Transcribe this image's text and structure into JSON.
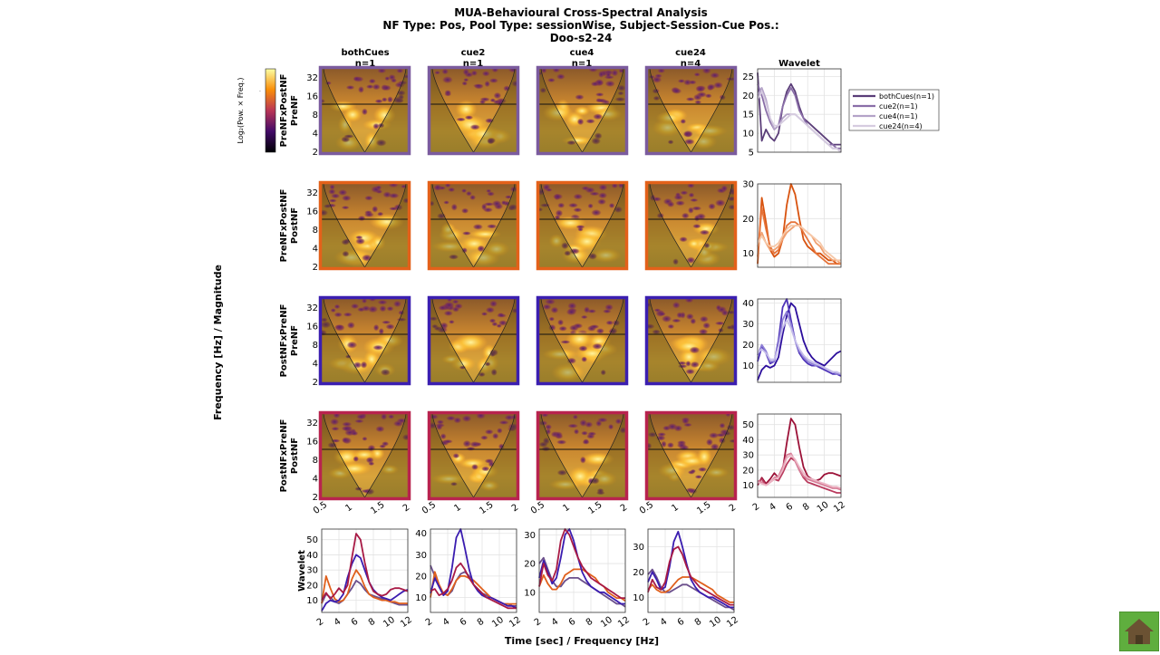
{
  "title": {
    "line1": "MUA-Behavioural Cross-Spectral Analysis",
    "line2": "NF Type: Pos, Pool Type: sessionWise, Subject-Session-Cue Pos.:",
    "line3": "Doo-s2-24"
  },
  "column_headers": [
    {
      "name": "bothCues",
      "n": "n=1"
    },
    {
      "name": "cue2",
      "n": "n=1"
    },
    {
      "name": "cue4",
      "n": "n=1"
    },
    {
      "name": "cue24",
      "n": "n=4"
    }
  ],
  "wavelet_column_title": "Wavelet",
  "row_labels": [
    {
      "line1": "PreNFxPostNF",
      "line2": "PreNF"
    },
    {
      "line1": "PreNFxPostNF",
      "line2": "PostNF"
    },
    {
      "line1": "PostNFxPreNF",
      "line2": "PreNF"
    },
    {
      "line1": "PostNFxPreNF",
      "line2": "PostNF"
    }
  ],
  "bottom_row_ylabel": "Wavelet",
  "global_ylabel": "Frequency [Hz] / Magnitude",
  "global_xlabel": "Time [sec] / Frequency [Hz]",
  "colorbar_label": "Log₂(Pow. × Freq.)",
  "heatmap_axes": {
    "y_ticks": [
      "32",
      "16",
      "8",
      "4",
      "2"
    ],
    "x_ticks": [
      "0.5",
      "1",
      "1.5",
      "2"
    ],
    "ylim": [
      2,
      45
    ],
    "xlim": [
      0.5,
      2
    ],
    "y_scale": "log2",
    "reference_line_freq": 12
  },
  "colors": {
    "row_borders": [
      "#7b5b9e",
      "#e3611a",
      "#3b1fb0",
      "#b8234e"
    ],
    "cue_series": {
      "bothCues": [
        "#5a3d78",
        "#d8530f",
        "#2b0d9c",
        "#9c1238"
      ],
      "cue2": [
        "#8a6ea8",
        "#e6743a",
        "#4d33b8",
        "#b93a5d"
      ],
      "cue4": [
        "#b4a3c8",
        "#f0a070",
        "#8f80d6",
        "#d77d97"
      ],
      "cue24": [
        "#d6cce0",
        "#f6c8a8",
        "#c4bcea",
        "#ebb5c4"
      ]
    },
    "row_series": [
      "#6b4f8c",
      "#e0601c",
      "#3a1cb0",
      "#a81a45"
    ]
  },
  "chart_data": [
    {
      "type": "line",
      "panel": "Wavelet (row PreNFxPostNF / PreNF)",
      "xlim": [
        2,
        12
      ],
      "ylim": [
        5,
        27
      ],
      "y_ticks": [
        5,
        10,
        15,
        20,
        25
      ],
      "grid": true,
      "legend_position": "right-outside",
      "legend": [
        "bothCues(n=1)",
        "cue2(n=1)",
        "cue4(n=1)",
        "cue24(n=4)"
      ],
      "x": [
        2,
        2.5,
        3,
        3.5,
        4,
        4.5,
        5,
        5.5,
        6,
        6.5,
        7,
        7.5,
        8,
        8.5,
        9,
        9.5,
        10,
        10.5,
        11,
        11.5,
        12
      ],
      "series": [
        {
          "name": "bothCues(n=1)",
          "values": [
            26,
            8,
            11,
            9,
            8,
            10,
            17,
            21,
            23,
            21,
            17,
            14,
            13,
            12,
            11,
            10,
            9,
            8,
            7,
            7,
            7
          ]
        },
        {
          "name": "cue2(n=1)",
          "values": [
            23,
            20,
            16,
            13,
            11,
            12,
            17,
            20,
            22,
            20,
            16,
            14,
            12,
            11,
            10,
            9,
            8,
            7,
            7,
            6,
            6
          ]
        },
        {
          "name": "cue4(n=1)",
          "values": [
            20,
            22,
            19,
            14,
            11,
            12,
            14,
            15,
            15,
            15,
            14,
            13,
            12,
            11,
            10,
            9,
            8,
            7,
            6,
            6,
            5
          ]
        },
        {
          "name": "cue24(n=4)",
          "values": [
            19,
            21,
            18,
            14,
            12,
            12,
            13,
            14,
            15,
            15,
            14,
            13,
            12,
            11,
            10,
            9,
            8,
            7,
            6,
            6,
            5
          ]
        }
      ]
    },
    {
      "type": "line",
      "panel": "Wavelet (row PreNFxPostNF / PostNF)",
      "xlim": [
        2,
        12
      ],
      "ylim": [
        6,
        30
      ],
      "y_ticks": [
        10,
        20,
        30
      ],
      "grid": true,
      "x": [
        2,
        2.5,
        3,
        3.5,
        4,
        4.5,
        5,
        5.5,
        6,
        6.5,
        7,
        7.5,
        8,
        8.5,
        9,
        9.5,
        10,
        10.5,
        11,
        11.5,
        12
      ],
      "series": [
        {
          "name": "bothCues(n=1)",
          "values": [
            7,
            26,
            19,
            11,
            9,
            10,
            14,
            24,
            30,
            27,
            20,
            14,
            12,
            11,
            10,
            10,
            9,
            8,
            8,
            7,
            7
          ]
        },
        {
          "name": "cue2(n=1)",
          "values": [
            9,
            23,
            17,
            12,
            10,
            11,
            14,
            18,
            19,
            19,
            18,
            16,
            14,
            12,
            10,
            9,
            8,
            7,
            7,
            7,
            7
          ]
        },
        {
          "name": "cue4(n=1)",
          "values": [
            12,
            16,
            13,
            11,
            11,
            12,
            14,
            16,
            17,
            18,
            18,
            17,
            16,
            15,
            13,
            12,
            10,
            9,
            8,
            8,
            7
          ]
        },
        {
          "name": "cue24(n=4)",
          "values": [
            13,
            15,
            13,
            12,
            12,
            13,
            15,
            17,
            18,
            18,
            18,
            17,
            16,
            15,
            14,
            13,
            11,
            10,
            9,
            8,
            8
          ]
        }
      ]
    },
    {
      "type": "line",
      "panel": "Wavelet (row PostNFxPreNF / PreNF)",
      "xlim": [
        2,
        12
      ],
      "ylim": [
        2,
        42
      ],
      "y_ticks": [
        10,
        20,
        30,
        40
      ],
      "grid": true,
      "x": [
        2,
        2.5,
        3,
        3.5,
        4,
        4.5,
        5,
        5.5,
        6,
        6.5,
        7,
        7.5,
        8,
        8.5,
        9,
        9.5,
        10,
        10.5,
        11,
        11.5,
        12
      ],
      "series": [
        {
          "name": "bothCues(n=1)",
          "values": [
            3,
            8,
            10,
            9,
            10,
            14,
            25,
            34,
            40,
            38,
            30,
            22,
            17,
            14,
            12,
            11,
            10,
            12,
            14,
            16,
            17
          ]
        },
        {
          "name": "cue2(n=1)",
          "values": [
            12,
            19,
            16,
            11,
            12,
            22,
            38,
            42,
            32,
            22,
            16,
            13,
            11,
            10,
            10,
            9,
            8,
            7,
            6,
            6,
            5
          ]
        },
        {
          "name": "cue4(n=1)",
          "values": [
            15,
            20,
            17,
            12,
            12,
            20,
            32,
            36,
            30,
            22,
            17,
            14,
            12,
            11,
            10,
            10,
            9,
            8,
            7,
            6,
            6
          ]
        },
        {
          "name": "cue24(n=4)",
          "values": [
            16,
            18,
            16,
            13,
            13,
            19,
            28,
            32,
            28,
            22,
            18,
            15,
            13,
            12,
            11,
            10,
            9,
            8,
            7,
            7,
            6
          ]
        }
      ]
    },
    {
      "type": "line",
      "panel": "Wavelet (row PostNFxPreNF / PostNF)",
      "xlim": [
        2,
        12
      ],
      "ylim": [
        2,
        57
      ],
      "y_ticks": [
        10,
        20,
        30,
        40,
        50
      ],
      "grid": true,
      "x_ticks": [
        2,
        4,
        6,
        8,
        10,
        12
      ],
      "x": [
        2,
        2.5,
        3,
        3.5,
        4,
        4.5,
        5,
        5.5,
        6,
        6.5,
        7,
        7.5,
        8,
        8.5,
        9,
        9.5,
        10,
        10.5,
        11,
        11.5,
        12
      ],
      "series": [
        {
          "name": "bothCues(n=1)",
          "values": [
            10,
            15,
            11,
            14,
            18,
            15,
            20,
            38,
            54,
            50,
            35,
            22,
            16,
            14,
            13,
            14,
            17,
            18,
            18,
            17,
            16
          ]
        },
        {
          "name": "cue2(n=1)",
          "values": [
            12,
            14,
            10,
            12,
            14,
            13,
            18,
            24,
            28,
            26,
            20,
            15,
            12,
            11,
            10,
            9,
            8,
            7,
            6,
            5,
            5
          ]
        },
        {
          "name": "cue4(n=1)",
          "values": [
            13,
            12,
            10,
            12,
            15,
            16,
            22,
            30,
            31,
            26,
            20,
            16,
            14,
            13,
            12,
            11,
            10,
            9,
            8,
            8,
            7
          ]
        },
        {
          "name": "cue24(n=4)",
          "values": [
            12,
            11,
            10,
            12,
            14,
            15,
            20,
            28,
            30,
            27,
            22,
            18,
            15,
            14,
            13,
            12,
            11,
            10,
            9,
            9,
            8
          ]
        }
      ]
    },
    {
      "type": "line",
      "panel": "Wavelet (column bothCues)",
      "xlim": [
        2,
        12
      ],
      "ylim": [
        2,
        57
      ],
      "y_ticks": [
        10,
        20,
        30,
        40,
        50
      ],
      "x_ticks": [
        2,
        4,
        6,
        8,
        10,
        12
      ],
      "grid": true,
      "x": [
        2,
        2.5,
        3,
        3.5,
        4,
        4.5,
        5,
        5.5,
        6,
        6.5,
        7,
        7.5,
        8,
        8.5,
        9,
        9.5,
        10,
        10.5,
        11,
        11.5,
        12
      ],
      "series": [
        {
          "values": [
            8,
            14,
            12,
            9,
            8,
            10,
            14,
            18,
            23,
            21,
            17,
            14,
            13,
            12,
            11,
            10,
            9,
            8,
            7,
            7,
            7
          ]
        },
        {
          "values": [
            8,
            26,
            18,
            11,
            9,
            10,
            14,
            24,
            30,
            26,
            19,
            14,
            12,
            11,
            10,
            10,
            9,
            9,
            8,
            8,
            8
          ]
        },
        {
          "values": [
            3,
            8,
            10,
            9,
            10,
            14,
            25,
            34,
            40,
            38,
            30,
            22,
            17,
            14,
            12,
            11,
            10,
            12,
            14,
            16,
            17
          ]
        },
        {
          "values": [
            10,
            15,
            11,
            14,
            18,
            15,
            20,
            38,
            54,
            50,
            35,
            22,
            16,
            14,
            13,
            14,
            17,
            18,
            18,
            17,
            16
          ]
        }
      ]
    },
    {
      "type": "line",
      "panel": "Wavelet (column cue2)",
      "xlim": [
        2,
        12
      ],
      "ylim": [
        3,
        42
      ],
      "y_ticks": [
        10,
        20,
        30,
        40
      ],
      "x_ticks": [
        2,
        4,
        6,
        8,
        10,
        12
      ],
      "grid": true,
      "x": [
        2,
        2.5,
        3,
        3.5,
        4,
        4.5,
        5,
        5.5,
        6,
        6.5,
        7,
        7.5,
        8,
        8.5,
        9,
        9.5,
        10,
        10.5,
        11,
        11.5,
        12
      ],
      "series": [
        {
          "values": [
            25,
            20,
            15,
            12,
            11,
            13,
            18,
            21,
            22,
            20,
            16,
            14,
            12,
            11,
            10,
            9,
            8,
            7,
            7,
            6,
            6
          ]
        },
        {
          "values": [
            10,
            22,
            16,
            12,
            11,
            14,
            18,
            20,
            20,
            19,
            18,
            16,
            14,
            12,
            10,
            9,
            8,
            7,
            7,
            7,
            7
          ]
        },
        {
          "values": [
            12,
            19,
            15,
            11,
            13,
            24,
            38,
            42,
            33,
            23,
            16,
            13,
            11,
            10,
            10,
            9,
            8,
            7,
            6,
            6,
            5
          ]
        },
        {
          "values": [
            13,
            14,
            11,
            12,
            14,
            18,
            24,
            26,
            23,
            19,
            16,
            14,
            12,
            10,
            9,
            8,
            7,
            6,
            5,
            5,
            5
          ]
        }
      ]
    },
    {
      "type": "line",
      "panel": "Wavelet (column cue4)",
      "xlim": [
        2,
        12
      ],
      "ylim": [
        3,
        32
      ],
      "y_ticks": [
        10,
        20,
        30
      ],
      "x_ticks": [
        2,
        4,
        6,
        8,
        10,
        12
      ],
      "grid": true,
      "x": [
        2,
        2.5,
        3,
        3.5,
        4,
        4.5,
        5,
        5.5,
        6,
        6.5,
        7,
        7.5,
        8,
        8.5,
        9,
        9.5,
        10,
        10.5,
        11,
        11.5,
        12
      ],
      "series": [
        {
          "values": [
            20,
            22,
            18,
            14,
            12,
            12,
            14,
            15,
            15,
            15,
            14,
            13,
            12,
            11,
            10,
            9,
            8,
            7,
            6,
            6,
            5
          ]
        },
        {
          "values": [
            12,
            16,
            13,
            11,
            11,
            13,
            16,
            17,
            18,
            18,
            18,
            17,
            16,
            15,
            13,
            12,
            10,
            9,
            8,
            8,
            7
          ]
        },
        {
          "values": [
            15,
            21,
            17,
            13,
            15,
            22,
            30,
            32,
            28,
            22,
            17,
            14,
            12,
            11,
            10,
            10,
            9,
            8,
            7,
            6,
            6
          ]
        },
        {
          "values": [
            12,
            20,
            16,
            14,
            18,
            28,
            32,
            30,
            26,
            22,
            19,
            17,
            15,
            14,
            13,
            12,
            11,
            10,
            9,
            8,
            8
          ]
        }
      ]
    },
    {
      "type": "line",
      "panel": "Wavelet (column cue24)",
      "xlim": [
        2,
        12
      ],
      "ylim": [
        4,
        37
      ],
      "y_ticks": [
        10,
        20,
        30
      ],
      "x_ticks": [
        2,
        4,
        6,
        8,
        10,
        12
      ],
      "grid": true,
      "x": [
        2,
        2.5,
        3,
        3.5,
        4,
        4.5,
        5,
        5.5,
        6,
        6.5,
        7,
        7.5,
        8,
        8.5,
        9,
        9.5,
        10,
        10.5,
        11,
        11.5,
        12
      ],
      "series": [
        {
          "values": [
            19,
            21,
            18,
            14,
            12,
            12,
            13,
            14,
            15,
            15,
            14,
            13,
            12,
            11,
            10,
            9,
            8,
            7,
            6,
            6,
            5
          ]
        },
        {
          "values": [
            13,
            15,
            13,
            12,
            12,
            13,
            15,
            17,
            18,
            18,
            18,
            17,
            16,
            15,
            14,
            13,
            11,
            10,
            9,
            8,
            8
          ]
        },
        {
          "values": [
            16,
            20,
            17,
            13,
            14,
            22,
            32,
            36,
            30,
            23,
            17,
            14,
            12,
            11,
            10,
            10,
            9,
            8,
            7,
            6,
            6
          ]
        },
        {
          "values": [
            12,
            17,
            14,
            13,
            16,
            24,
            29,
            30,
            27,
            22,
            18,
            16,
            14,
            13,
            12,
            11,
            10,
            9,
            8,
            7,
            7
          ]
        }
      ]
    }
  ]
}
